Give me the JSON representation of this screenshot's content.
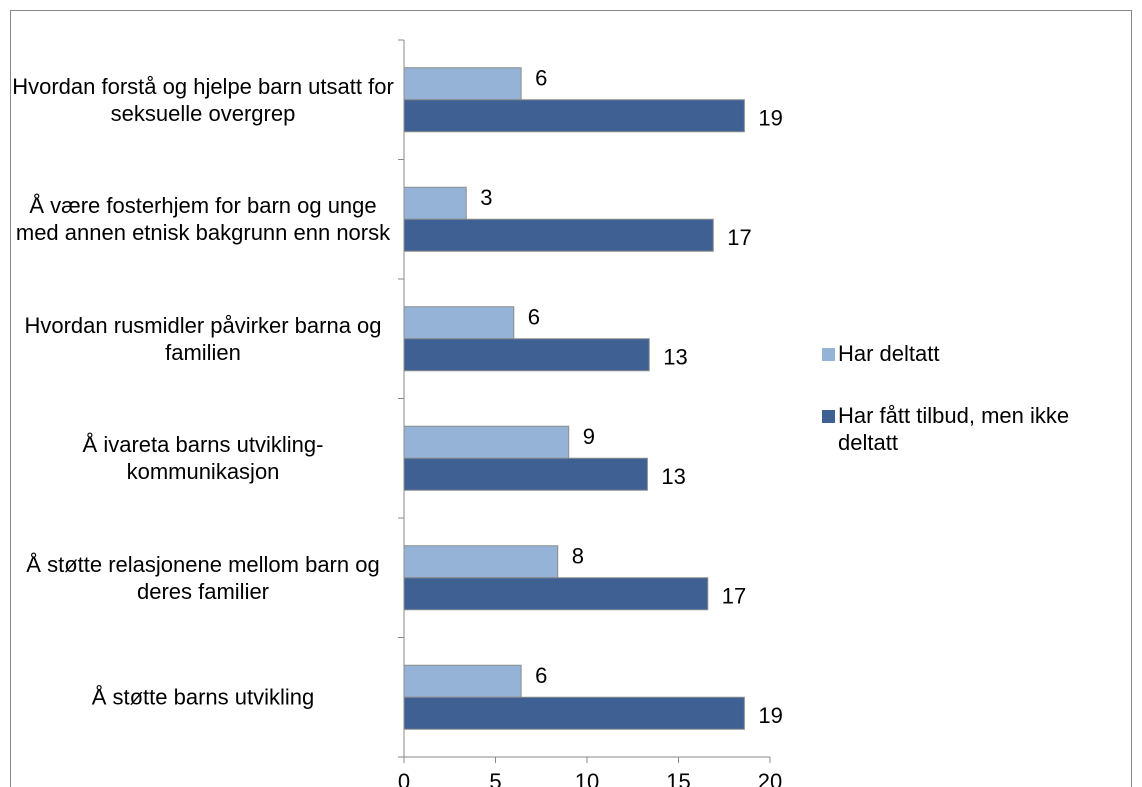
{
  "chart_data": {
    "type": "bar",
    "orientation": "horizontal",
    "categories": [
      "Hvordan forstå og hjelpe barn utsatt for seksuelle overgrep",
      "Å være fosterhjem for barn og unge med annen etnisk bakgrunn enn norsk",
      "Hvordan rusmidler påvirker barna og familien",
      "Å ivareta barns utvikling-kommunikasjon",
      "Å støtte relasjonene mellom barn og deres familier",
      "Å støtte barns utvikling"
    ],
    "series": [
      {
        "name": "Har deltatt",
        "color": "#95b3d7",
        "values": [
          6.4,
          3.4,
          6.0,
          9.0,
          8.4,
          6.4
        ],
        "value_labels": [
          "6",
          "3",
          "6",
          "9",
          "8",
          "6"
        ]
      },
      {
        "name": "Har fått tilbud, men ikke deltatt",
        "color": "#3e6092",
        "values": [
          18.6,
          16.9,
          13.4,
          13.3,
          16.6,
          18.6
        ],
        "value_labels": [
          "19",
          "17",
          "13",
          "13",
          "17",
          "19"
        ]
      }
    ],
    "xlim": [
      0,
      20
    ],
    "xticks": [
      0,
      5,
      10,
      15,
      20
    ],
    "legend": "right"
  }
}
